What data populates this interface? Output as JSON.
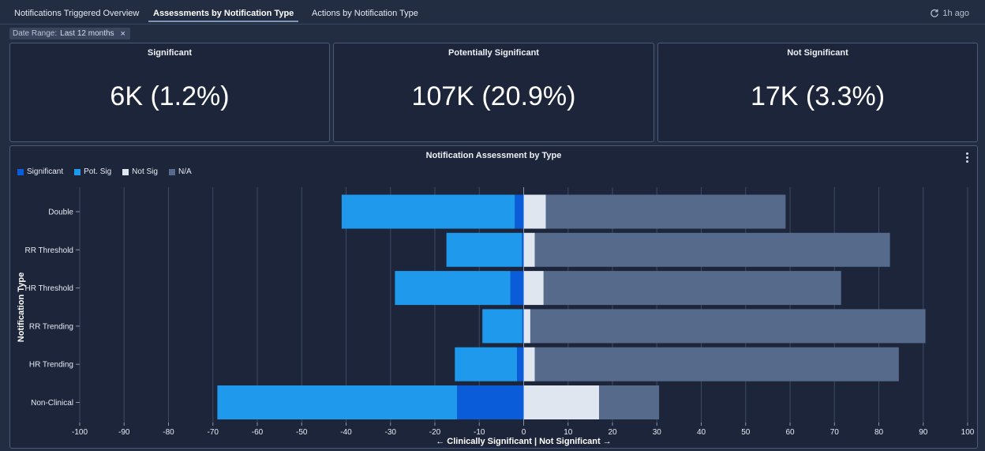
{
  "tabs": [
    {
      "label": "Notifications Triggered Overview",
      "active": false
    },
    {
      "label": "Assessments by Notification Type",
      "active": true
    },
    {
      "label": "Actions by Notification Type",
      "active": false
    }
  ],
  "refresh_label": "1h ago",
  "filter": {
    "key": "Date Range:",
    "value": "Last 12 months",
    "close": "×"
  },
  "cards": [
    {
      "title": "Significant",
      "value": "6K (1.2%)"
    },
    {
      "title": "Potentially Significant",
      "value": "107K (20.9%)"
    },
    {
      "title": "Not Significant",
      "value": "17K (3.3%)"
    }
  ],
  "colors": {
    "significant": "#0a5cd9",
    "pot_sig": "#1e99eb",
    "not_sig": "#dfe6f0",
    "na": "#566a8b"
  },
  "chart_data": {
    "type": "bar",
    "orientation": "horizontal",
    "stacked": "diverging",
    "title": "Notification Assessment by Type",
    "ylabel": "Notification Type",
    "xlabel": "← Clinically Significant | Not Significant →",
    "xlim": [
      -100,
      100
    ],
    "xticks": [
      -100,
      -90,
      -80,
      -70,
      -60,
      -50,
      -40,
      -30,
      -20,
      -10,
      0,
      10,
      20,
      30,
      40,
      50,
      60,
      70,
      80,
      90,
      100
    ],
    "categories": [
      "Double",
      "RR Threshold",
      "HR Threshold",
      "RR Trending",
      "HR Trending",
      "Non-Clinical"
    ],
    "series": [
      {
        "name": "Significant",
        "color_key": "significant",
        "side": "negative",
        "values": [
          2,
          0.4,
          3,
          0.3,
          1.5,
          15
        ]
      },
      {
        "name": "Pot. Sig",
        "color_key": "pot_sig",
        "side": "negative",
        "values": [
          39,
          17,
          26,
          9,
          14,
          54
        ]
      },
      {
        "name": "Not Sig",
        "color_key": "not_sig",
        "side": "positive",
        "values": [
          5,
          2.5,
          4.5,
          1.5,
          2.5,
          17
        ]
      },
      {
        "name": "N/A",
        "color_key": "na",
        "side": "positive",
        "values": [
          54,
          80,
          67,
          89,
          82,
          13.5
        ]
      }
    ],
    "grid": true,
    "legend_position": "top-left"
  }
}
